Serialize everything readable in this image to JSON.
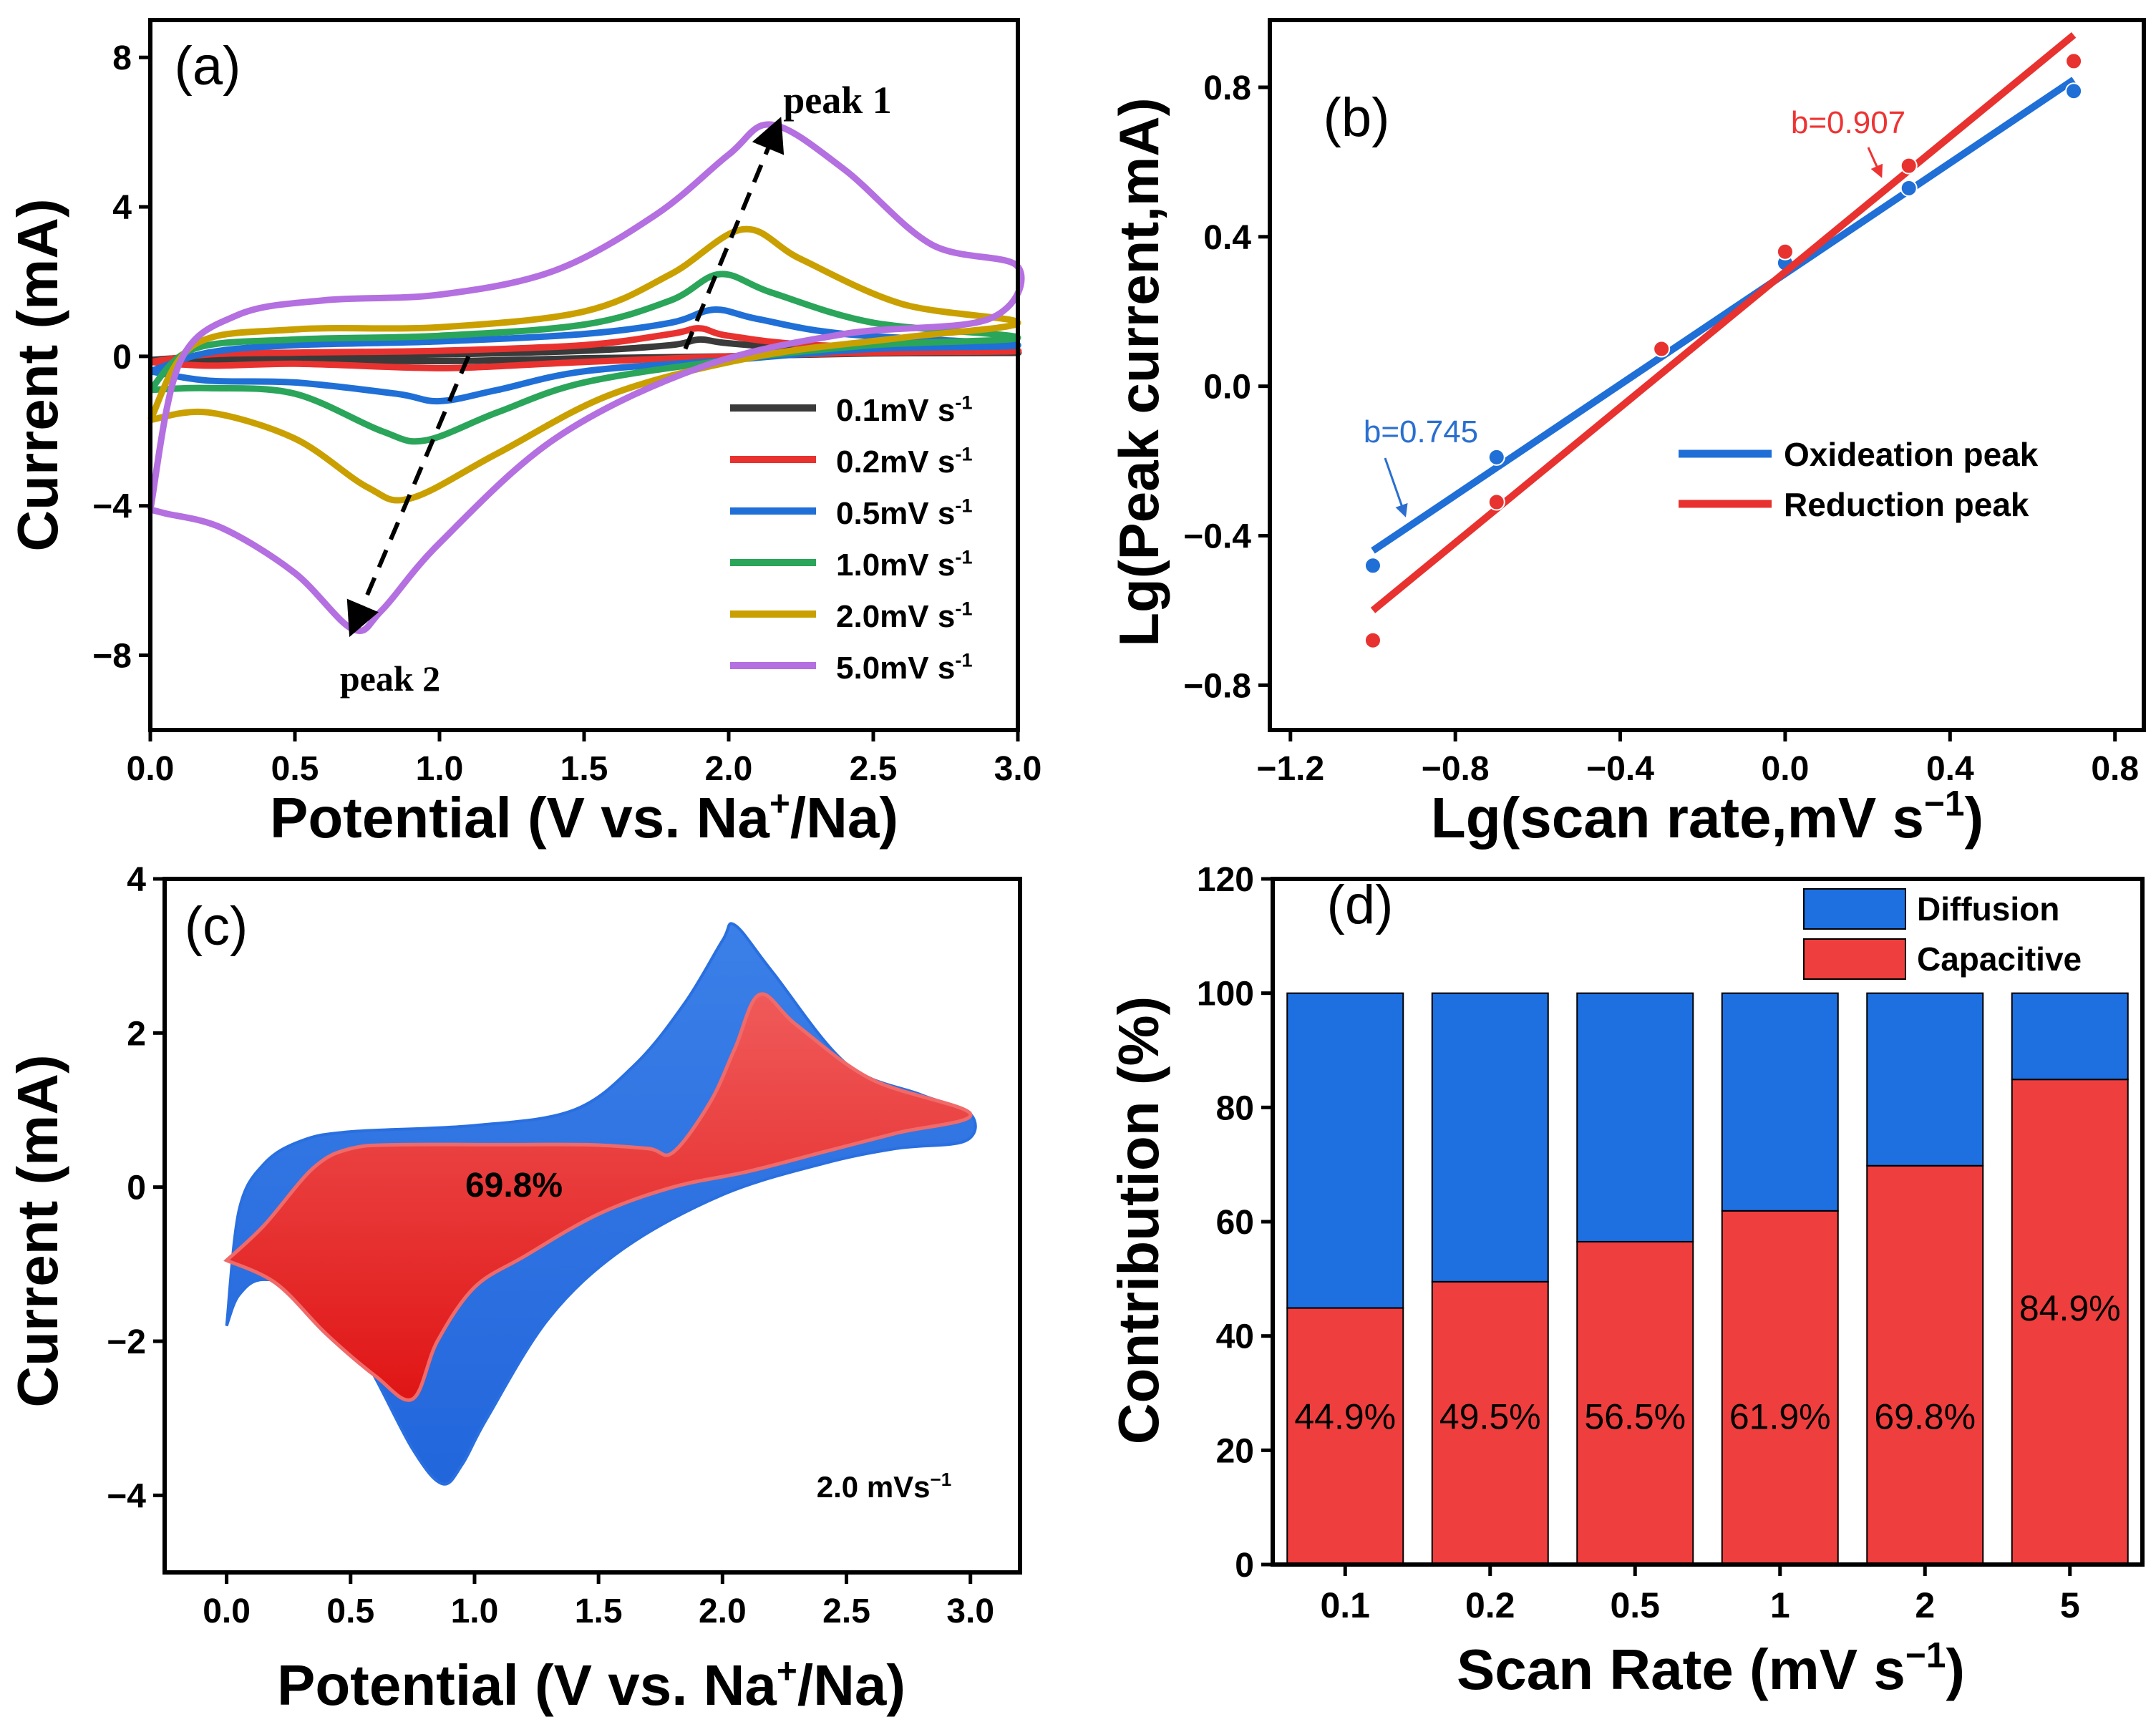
{
  "colors": {
    "black": "#000000",
    "grey": "#3a3a3a",
    "red": "#e8322f",
    "blue": "#1f6fd6",
    "green": "#2aa55a",
    "gold": "#c9a000",
    "purple": "#b46fe0",
    "fill_blue": "#2266dc",
    "fill_red": "#ef3d3d",
    "bar_blue": "#1e6fe0",
    "bar_red": "#ef3e3e",
    "label_red": "#e33",
    "label_blue": "#2a6fd0"
  },
  "chart_data": [
    {
      "id": "a",
      "type": "line",
      "panel_label": "(a)",
      "xlabel_parts": [
        "Potential (V vs. Na",
        "+",
        "/Na)"
      ],
      "ylabel": "Current (mA)",
      "xlim": [
        0,
        3
      ],
      "ylim": [
        -10,
        9
      ],
      "xticks": [
        0,
        0.5,
        1,
        1.5,
        2,
        2.5,
        3
      ],
      "xtick_labels": [
        "0.0",
        "0.5",
        "1.0",
        "1.5",
        "2.0",
        "2.5",
        "3.0"
      ],
      "yticks": [
        -8,
        -4,
        0,
        4,
        8
      ],
      "ytick_labels": [
        "−8",
        "−4",
        "0",
        "4",
        "8"
      ],
      "annotations": [
        {
          "text": "peak 1",
          "from": [
            1.85,
            0.2
          ],
          "to": [
            2.17,
            6.2
          ]
        },
        {
          "text": "peak 2",
          "from": [
            1.1,
            0.0
          ],
          "to": [
            0.7,
            -7.3
          ]
        }
      ],
      "legend_unit": "mV s",
      "legend_sup": "-1",
      "series": [
        {
          "name": "0.1",
          "color": "grey",
          "upper": [
            [
              0,
              -0.1
            ],
            [
              0.2,
              0.0
            ],
            [
              0.5,
              0.02
            ],
            [
              1.0,
              0.05
            ],
            [
              1.5,
              0.15
            ],
            [
              1.8,
              0.3
            ],
            [
              1.9,
              0.45
            ],
            [
              2.0,
              0.35
            ],
            [
              2.3,
              0.2
            ],
            [
              3.0,
              0.1
            ]
          ],
          "lower": [
            [
              3.0,
              0.1
            ],
            [
              2.5,
              0.08
            ],
            [
              2.0,
              0.0
            ],
            [
              1.5,
              -0.05
            ],
            [
              1.1,
              -0.12
            ],
            [
              0.8,
              -0.12
            ],
            [
              0.5,
              -0.1
            ],
            [
              0.2,
              -0.1
            ],
            [
              0,
              -0.1
            ]
          ]
        },
        {
          "name": "0.2",
          "color": "red",
          "upper": [
            [
              0,
              -0.15
            ],
            [
              0.2,
              0.05
            ],
            [
              0.5,
              0.1
            ],
            [
              1.0,
              0.15
            ],
            [
              1.5,
              0.3
            ],
            [
              1.8,
              0.6
            ],
            [
              1.9,
              0.75
            ],
            [
              2.0,
              0.55
            ],
            [
              2.3,
              0.3
            ],
            [
              3.0,
              0.15
            ]
          ],
          "lower": [
            [
              3.0,
              0.15
            ],
            [
              2.5,
              0.1
            ],
            [
              2.0,
              0.0
            ],
            [
              1.5,
              -0.15
            ],
            [
              1.1,
              -0.3
            ],
            [
              0.9,
              -0.3
            ],
            [
              0.5,
              -0.2
            ],
            [
              0.2,
              -0.25
            ],
            [
              0,
              -0.15
            ]
          ]
        },
        {
          "name": "0.5",
          "color": "blue",
          "upper": [
            [
              0,
              -0.4
            ],
            [
              0.2,
              0.1
            ],
            [
              0.5,
              0.3
            ],
            [
              1.0,
              0.4
            ],
            [
              1.5,
              0.6
            ],
            [
              1.8,
              0.9
            ],
            [
              1.95,
              1.25
            ],
            [
              2.1,
              1.0
            ],
            [
              2.4,
              0.6
            ],
            [
              3.0,
              0.3
            ]
          ],
          "lower": [
            [
              3.0,
              0.3
            ],
            [
              2.5,
              0.2
            ],
            [
              2.0,
              -0.1
            ],
            [
              1.5,
              -0.4
            ],
            [
              1.2,
              -0.9
            ],
            [
              1.0,
              -1.2
            ],
            [
              0.85,
              -1.0
            ],
            [
              0.5,
              -0.7
            ],
            [
              0.2,
              -0.65
            ],
            [
              0,
              -0.4
            ]
          ]
        },
        {
          "name": "1.0",
          "color": "green",
          "upper": [
            [
              0,
              -0.9
            ],
            [
              0.15,
              0.2
            ],
            [
              0.5,
              0.45
            ],
            [
              1.0,
              0.55
            ],
            [
              1.5,
              0.85
            ],
            [
              1.8,
              1.5
            ],
            [
              1.97,
              2.2
            ],
            [
              2.15,
              1.7
            ],
            [
              2.5,
              0.9
            ],
            [
              3.0,
              0.5
            ]
          ],
          "lower": [
            [
              3.0,
              0.5
            ],
            [
              2.5,
              0.3
            ],
            [
              2.0,
              -0.1
            ],
            [
              1.5,
              -0.7
            ],
            [
              1.2,
              -1.5
            ],
            [
              0.95,
              -2.25
            ],
            [
              0.8,
              -2.0
            ],
            [
              0.5,
              -1.0
            ],
            [
              0.2,
              -0.85
            ],
            [
              0,
              -0.9
            ]
          ]
        },
        {
          "name": "2.0",
          "color": "gold",
          "upper": [
            [
              0,
              -1.7
            ],
            [
              0.15,
              0.3
            ],
            [
              0.5,
              0.72
            ],
            [
              1.0,
              0.78
            ],
            [
              1.5,
              1.2
            ],
            [
              1.8,
              2.2
            ],
            [
              2.05,
              3.4
            ],
            [
              2.25,
              2.6
            ],
            [
              2.6,
              1.4
            ],
            [
              3.0,
              0.9
            ]
          ],
          "lower": [
            [
              3.0,
              0.9
            ],
            [
              2.6,
              0.5
            ],
            [
              2.1,
              0.0
            ],
            [
              1.6,
              -1.0
            ],
            [
              1.2,
              -2.6
            ],
            [
              0.9,
              -3.8
            ],
            [
              0.75,
              -3.5
            ],
            [
              0.5,
              -2.2
            ],
            [
              0.2,
              -1.5
            ],
            [
              0,
              -1.7
            ]
          ]
        },
        {
          "name": "5.0",
          "color": "purple",
          "upper": [
            [
              0,
              -4.1
            ],
            [
              0.1,
              -0.2
            ],
            [
              0.3,
              1.1
            ],
            [
              0.6,
              1.5
            ],
            [
              1.0,
              1.65
            ],
            [
              1.4,
              2.3
            ],
            [
              1.75,
              3.8
            ],
            [
              2.0,
              5.4
            ],
            [
              2.15,
              6.2
            ],
            [
              2.4,
              5.0
            ],
            [
              2.7,
              3.0
            ],
            [
              3.0,
              2.4
            ]
          ],
          "lower": [
            [
              3.0,
              2.4
            ],
            [
              2.9,
              1.0
            ],
            [
              2.4,
              0.6
            ],
            [
              1.9,
              -0.3
            ],
            [
              1.4,
              -2.2
            ],
            [
              1.0,
              -5.0
            ],
            [
              0.8,
              -6.8
            ],
            [
              0.7,
              -7.3
            ],
            [
              0.5,
              -5.8
            ],
            [
              0.25,
              -4.6
            ],
            [
              0.05,
              -4.2
            ],
            [
              0,
              -4.1
            ]
          ]
        }
      ]
    },
    {
      "id": "b",
      "type": "scatter",
      "panel_label": "(b)",
      "xlabel": "Lg(scan rate,mV s",
      "xlabel_sup": "−1",
      "xlabel_close": ")",
      "ylabel": "Lg(Peak current,mA)",
      "xlim": [
        -1.25,
        0.87
      ],
      "ylim": [
        -0.92,
        0.98
      ],
      "xticks": [
        -1.2,
        -0.8,
        -0.4,
        0.0,
        0.4,
        0.8
      ],
      "xtick_labels": [
        "−1.2",
        "−0.8",
        "−0.4",
        "0.0",
        "0.4",
        "0.8"
      ],
      "yticks": [
        -0.8,
        -0.4,
        0.0,
        0.4,
        0.8
      ],
      "ytick_labels": [
        "−0.8",
        "−0.4",
        "0.0",
        "0.4",
        "0.8"
      ],
      "series": [
        {
          "name": "Oxideation peak",
          "color": "blue",
          "x": [
            -1.0,
            -0.7,
            -0.3,
            0.0,
            0.3,
            0.7
          ],
          "y": [
            -0.48,
            -0.19,
            0.1,
            0.33,
            0.53,
            0.79
          ],
          "fit": [
            [
              -1.0,
              -0.44
            ],
            [
              0.7,
              0.82
            ]
          ],
          "slope_label": "b=0.745"
        },
        {
          "name": "Reduction  peak",
          "color": "red",
          "x": [
            -1.0,
            -0.7,
            -0.3,
            0.0,
            0.3,
            0.7
          ],
          "y": [
            -0.68,
            -0.31,
            0.1,
            0.36,
            0.59,
            0.87
          ],
          "fit": [
            [
              -1.0,
              -0.6
            ],
            [
              0.7,
              0.94
            ]
          ],
          "slope_label": "b=0.907"
        }
      ]
    },
    {
      "id": "c",
      "type": "area",
      "panel_label": "(c)",
      "xlabel_parts": [
        "Potential (V vs. Na",
        "+",
        "/Na)"
      ],
      "ylabel": "Current (mA)",
      "xlim": [
        -0.25,
        3.2
      ],
      "ylim": [
        -5,
        4
      ],
      "xticks": [
        0,
        0.5,
        1,
        1.5,
        2,
        2.5,
        3
      ],
      "xtick_labels": [
        "0.0",
        "0.5",
        "1.0",
        "1.5",
        "2.0",
        "2.5",
        "3.0"
      ],
      "yticks": [
        -4,
        -2,
        0,
        2,
        4
      ],
      "ytick_labels": [
        "−4",
        "−2",
        "0",
        "2",
        "4"
      ],
      "area_label": "69.8%",
      "rate_label": "2.0 mVs",
      "rate_sup": "−1",
      "total": [
        [
          0,
          -1.8
        ],
        [
          0.05,
          -0.3
        ],
        [
          0.15,
          0.3
        ],
        [
          0.3,
          0.6
        ],
        [
          0.5,
          0.72
        ],
        [
          1.0,
          0.8
        ],
        [
          1.4,
          1.0
        ],
        [
          1.65,
          1.6
        ],
        [
          1.85,
          2.4
        ],
        [
          2.0,
          3.2
        ],
        [
          2.05,
          3.4
        ],
        [
          2.2,
          2.8
        ],
        [
          2.5,
          1.6
        ],
        [
          2.8,
          1.2
        ],
        [
          3.0,
          0.95
        ],
        [
          2.98,
          0.6
        ],
        [
          2.7,
          0.5
        ],
        [
          2.4,
          0.3
        ],
        [
          2.0,
          -0.1
        ],
        [
          1.6,
          -0.8
        ],
        [
          1.3,
          -1.7
        ],
        [
          1.05,
          -3.0
        ],
        [
          0.95,
          -3.6
        ],
        [
          0.87,
          -3.85
        ],
        [
          0.75,
          -3.4
        ],
        [
          0.55,
          -2.2
        ],
        [
          0.35,
          -1.4
        ],
        [
          0.15,
          -1.2
        ],
        [
          0.05,
          -1.4
        ],
        [
          0,
          -1.8
        ]
      ],
      "capacitive": [
        [
          0,
          -0.95
        ],
        [
          0.15,
          -0.5
        ],
        [
          0.35,
          0.25
        ],
        [
          0.5,
          0.5
        ],
        [
          0.7,
          0.55
        ],
        [
          1.1,
          0.55
        ],
        [
          1.45,
          0.55
        ],
        [
          1.7,
          0.5
        ],
        [
          1.8,
          0.45
        ],
        [
          1.95,
          1.1
        ],
        [
          2.05,
          1.8
        ],
        [
          2.15,
          2.5
        ],
        [
          2.3,
          2.1
        ],
        [
          2.6,
          1.4
        ],
        [
          3.0,
          0.95
        ],
        [
          2.7,
          0.7
        ],
        [
          2.4,
          0.45
        ],
        [
          2.1,
          0.2
        ],
        [
          1.8,
          0.0
        ],
        [
          1.5,
          -0.35
        ],
        [
          1.2,
          -0.9
        ],
        [
          1.0,
          -1.3
        ],
        [
          0.85,
          -2.0
        ],
        [
          0.75,
          -2.75
        ],
        [
          0.6,
          -2.45
        ],
        [
          0.4,
          -1.9
        ],
        [
          0.2,
          -1.25
        ],
        [
          0,
          -0.95
        ]
      ]
    },
    {
      "id": "d",
      "type": "bar",
      "panel_label": "(d)",
      "xlabel": "Scan Rate (mV s",
      "xlabel_sup": "−1",
      "xlabel_close": ")",
      "ylabel": "Contribution (%)",
      "ylim": [
        0,
        120
      ],
      "yticks": [
        0,
        20,
        40,
        60,
        80,
        100,
        120
      ],
      "ytick_labels": [
        "0",
        "20",
        "40",
        "60",
        "80",
        "100",
        "120"
      ],
      "categories": [
        "0.1",
        "0.2",
        "0.5",
        "1",
        "2",
        "5"
      ],
      "series": [
        {
          "name": "Capacitive",
          "color": "bar_red",
          "values": [
            44.9,
            49.5,
            56.5,
            61.9,
            69.8,
            84.9
          ]
        },
        {
          "name": "Diffusion",
          "color": "bar_blue",
          "values": [
            55.1,
            50.5,
            43.5,
            38.1,
            30.2,
            15.1
          ]
        }
      ],
      "value_labels": [
        "44.9%",
        "49.5%",
        "56.5%",
        "61.9%",
        "69.8%",
        "84.9%"
      ],
      "legend": [
        "Diffusion",
        "Capacitive"
      ]
    }
  ]
}
